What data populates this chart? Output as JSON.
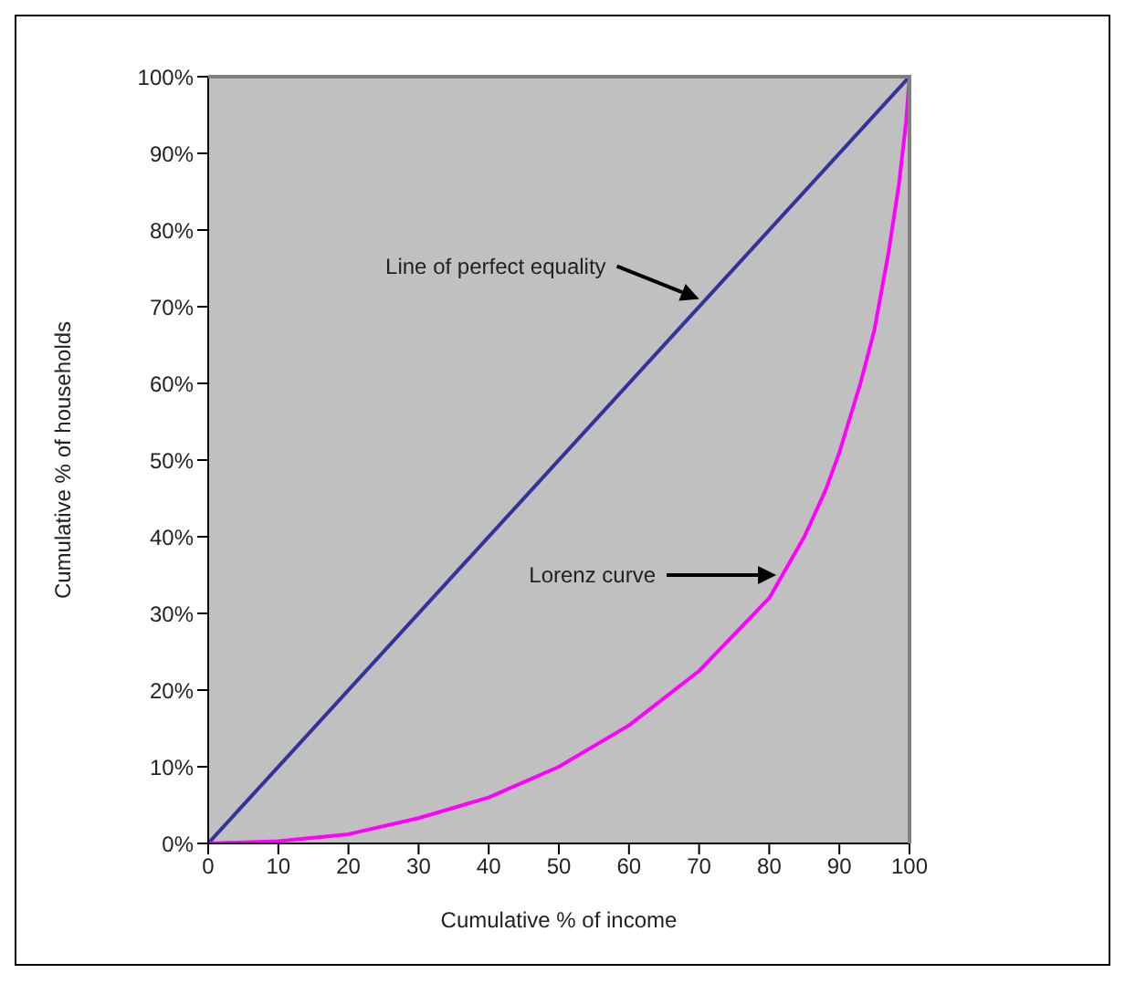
{
  "chart_data": {
    "type": "line",
    "xlabel": "Cumulative % of income",
    "ylabel": "Cumulative % of households",
    "xlim": [
      0,
      100
    ],
    "xticks": [
      0,
      10,
      20,
      30,
      40,
      50,
      60,
      70,
      80,
      90,
      100
    ],
    "ylim": [
      0,
      100
    ],
    "yticks": [
      {
        "value": 0,
        "label": "0%"
      },
      {
        "value": 10,
        "label": "10%"
      },
      {
        "value": 20,
        "label": "20%"
      },
      {
        "value": 30,
        "label": "30%"
      },
      {
        "value": 40,
        "label": "40%"
      },
      {
        "value": 50,
        "label": "50%"
      },
      {
        "value": 60,
        "label": "60%"
      },
      {
        "value": 70,
        "label": "70%"
      },
      {
        "value": 80,
        "label": "80%"
      },
      {
        "value": 90,
        "label": "90%"
      },
      {
        "value": 100,
        "label": "100%"
      }
    ],
    "grid": false,
    "marker": "none",
    "line_style": "solid",
    "series": [
      {
        "color": "#333399",
        "x": [
          0,
          100
        ],
        "values": [
          0,
          100
        ]
      },
      {
        "color": "#ff00ff",
        "x": [
          0,
          10,
          20,
          30,
          40,
          50,
          60,
          70,
          80,
          85,
          88,
          90,
          93,
          95,
          97,
          98.5,
          99.5,
          100
        ],
        "values": [
          0,
          0.3,
          1.2,
          3.3,
          6,
          10,
          15.4,
          22.5,
          32,
          40,
          46,
          51,
          60,
          67,
          77,
          86,
          94,
          100
        ]
      }
    ],
    "annotations": [
      "Line of perfect equality",
      "Lorenz curve"
    ]
  }
}
